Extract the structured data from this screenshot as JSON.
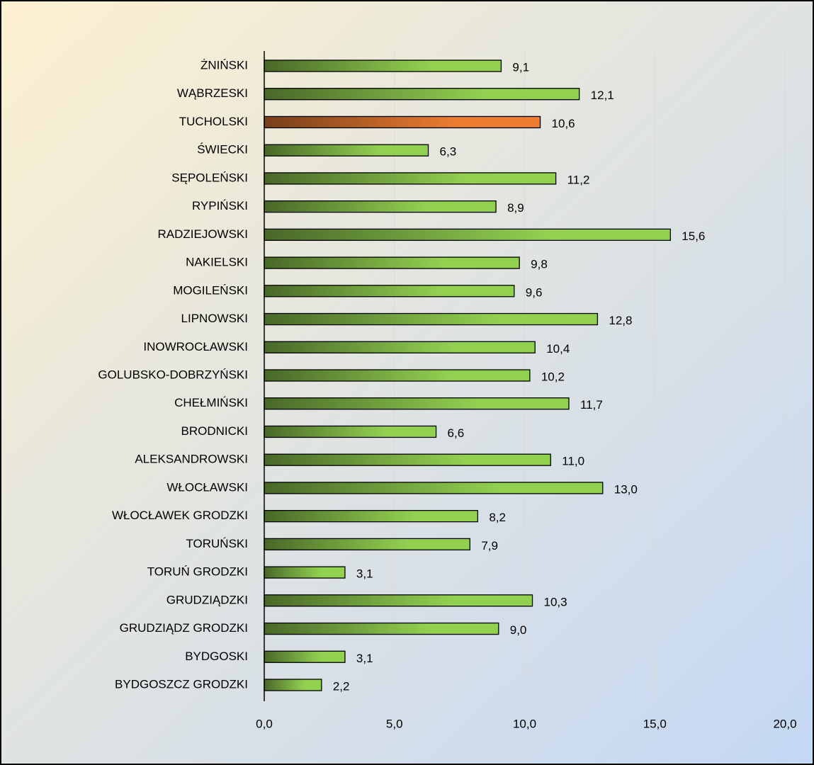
{
  "chart_data": {
    "type": "bar",
    "orientation": "horizontal",
    "categories": [
      "ŻNIŃSKI",
      "WĄBRZESKI",
      "TUCHOLSKI",
      "ŚWIECKI",
      "SĘPOLEŃSKI",
      "RYPIŃSKI",
      "RADZIEJOWSKI",
      "NAKIELSKI",
      "MOGILEŃSKI",
      "LIPNOWSKI",
      "INOWROCŁAWSKI",
      "GOLUBSKO-DOBRZYŃSKI",
      "CHEŁMIŃSKI",
      "BRODNICKI",
      "ALEKSANDROWSKI",
      "WŁOCŁAWSKI",
      "WŁOCŁAWEK GRODZKI",
      "TORUŃSKI",
      "TORUŃ GRODZKI",
      "GRUDZIĄDZKI",
      "GRUDZIĄDZ GRODZKI",
      "BYDGOSKI",
      "BYDGOSZCZ GRODZKI"
    ],
    "values": [
      9.1,
      12.1,
      10.6,
      6.3,
      11.2,
      8.9,
      15.6,
      9.8,
      9.6,
      12.8,
      10.4,
      10.2,
      11.7,
      6.6,
      11.0,
      13.0,
      8.2,
      7.9,
      3.1,
      10.3,
      9.0,
      3.1,
      2.2
    ],
    "value_labels": [
      "9,1",
      "12,1",
      "10,6",
      "6,3",
      "11,2",
      "8,9",
      "15,6",
      "9,8",
      "9,6",
      "12,8",
      "10,4",
      "10,2",
      "11,7",
      "6,6",
      "11,0",
      "13,0",
      "8,2",
      "7,9",
      "3,1",
      "10,3",
      "9,0",
      "3,1",
      "2,2"
    ],
    "colors": [
      "#92d050",
      "#92d050",
      "#ed7d31",
      "#92d050",
      "#92d050",
      "#92d050",
      "#92d050",
      "#92d050",
      "#92d050",
      "#92d050",
      "#92d050",
      "#92d050",
      "#92d050",
      "#92d050",
      "#92d050",
      "#92d050",
      "#92d050",
      "#92d050",
      "#92d050",
      "#92d050",
      "#92d050",
      "#92d050",
      "#92d050"
    ],
    "gradient": true,
    "xlim": [
      0,
      20
    ],
    "xticks": [
      {
        "value": 0,
        "label": "0,0"
      },
      {
        "value": 5,
        "label": "5,0"
      },
      {
        "value": 10,
        "label": "10,0"
      },
      {
        "value": 15,
        "label": "15,0"
      },
      {
        "value": 20,
        "label": "20,0"
      }
    ],
    "grid": true
  }
}
